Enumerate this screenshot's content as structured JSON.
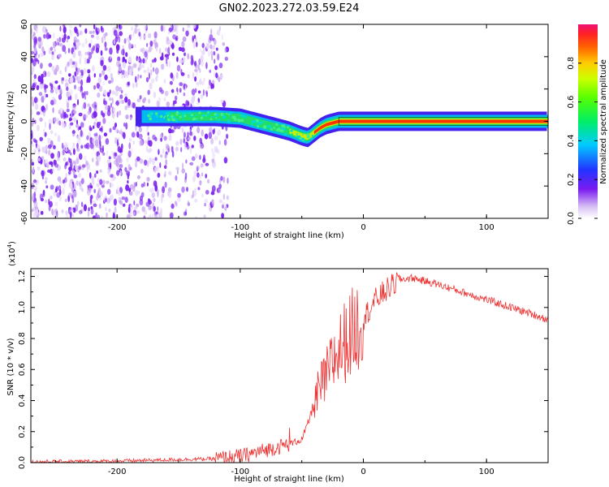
{
  "title": "GN02.2023.272.03.59.E24",
  "chart_data": [
    {
      "type": "heatmap",
      "xlabel": "Height of straight line (km)",
      "ylabel": "Frequency (Hz)",
      "xlim": [
        -270,
        150
      ],
      "ylim": [
        -60,
        60
      ],
      "x_ticks": [
        "-200",
        "-100",
        "0",
        "100"
      ],
      "y_ticks": [
        "-60",
        "-40",
        "-20",
        "0",
        "20",
        "40",
        "60"
      ],
      "ridge": {
        "x": [
          -180,
          -160,
          -140,
          -120,
          -100,
          -90,
          -80,
          -70,
          -60,
          -50,
          -45,
          -40,
          -35,
          -30,
          -20,
          -10,
          0,
          50,
          100,
          150
        ],
        "y": [
          3,
          3,
          3,
          3,
          2,
          0,
          -2,
          -4,
          -6,
          -9,
          -10,
          -7,
          -4,
          -2,
          0,
          0,
          0,
          0,
          0,
          0
        ]
      },
      "colorbar": {
        "label": "Normalized spectral amplitude",
        "ticks": [
          "0.0",
          "0.2",
          "0.4",
          "0.6",
          "0.8"
        ],
        "range": [
          0,
          1
        ]
      }
    },
    {
      "type": "line",
      "xlabel": "Height of straight line (km)",
      "ylabel": "SNR (10 * v/v)",
      "y_multiplier": "(x10",
      "y_multiplier_exp": "4",
      "y_multiplier_close": ")",
      "xlim": [
        -270,
        150
      ],
      "ylim": [
        0,
        1.25
      ],
      "x_ticks": [
        "-200",
        "-100",
        "0",
        "100"
      ],
      "y_ticks": [
        "0.0",
        "0.2",
        "0.4",
        "0.6",
        "0.8",
        "1.0",
        "1.2"
      ],
      "series": [
        {
          "color": "#ee3333",
          "x": [
            -270,
            -200,
            -150,
            -120,
            -100,
            -90,
            -80,
            -70,
            -60,
            -50,
            -45,
            -40,
            -35,
            -30,
            -25,
            -20,
            -15,
            -10,
            -5,
            0,
            10,
            20,
            30,
            40,
            60,
            80,
            100,
            120,
            140,
            150
          ],
          "y": [
            0.005,
            0.01,
            0.02,
            0.025,
            0.04,
            0.06,
            0.08,
            0.1,
            0.12,
            0.15,
            0.25,
            0.38,
            0.48,
            0.55,
            0.65,
            0.72,
            0.78,
            0.83,
            0.88,
            0.93,
            1.05,
            1.12,
            1.18,
            1.19,
            1.15,
            1.1,
            1.05,
            1.0,
            0.95,
            0.92
          ]
        }
      ]
    }
  ]
}
